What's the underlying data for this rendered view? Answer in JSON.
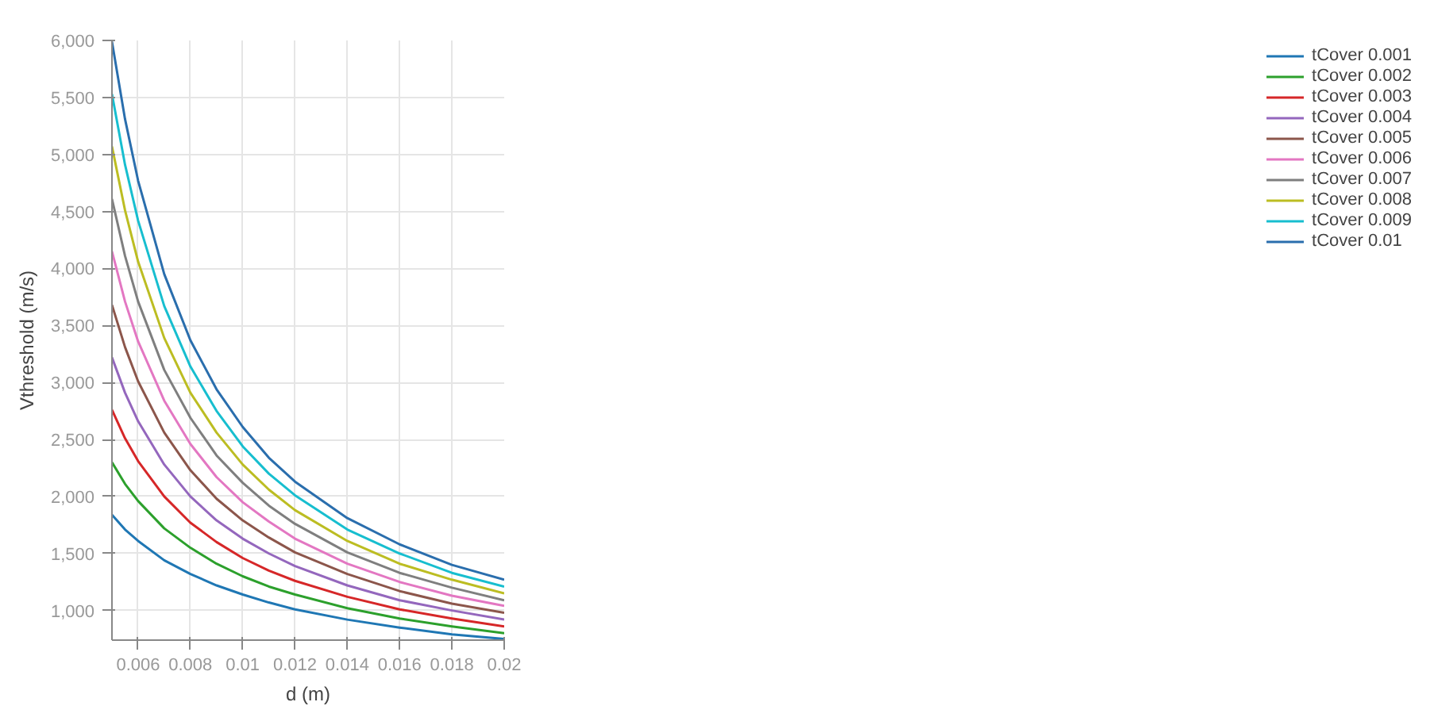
{
  "chart_data": {
    "type": "line",
    "xlabel": "d (m)",
    "ylabel": "Vthreshold (m/s)",
    "x": [
      0.005,
      0.0055,
      0.006,
      0.007,
      0.008,
      0.009,
      0.01,
      0.011,
      0.012,
      0.014,
      0.016,
      0.018,
      0.02
    ],
    "series": [
      {
        "name": "tCover 0.001",
        "color": "#1f77b4",
        "values": [
          1840,
          1710,
          1610,
          1440,
          1320,
          1220,
          1140,
          1070,
          1010,
          920,
          850,
          790,
          750
        ]
      },
      {
        "name": "tCover 0.002",
        "color": "#2ca02c",
        "values": [
          2300,
          2110,
          1960,
          1720,
          1550,
          1410,
          1300,
          1210,
          1140,
          1020,
          930,
          860,
          800
        ]
      },
      {
        "name": "tCover 0.003",
        "color": "#d62728",
        "values": [
          2760,
          2510,
          2310,
          2000,
          1770,
          1600,
          1460,
          1350,
          1260,
          1120,
          1010,
          930,
          860
        ]
      },
      {
        "name": "tCover 0.004",
        "color": "#9467bd",
        "values": [
          3220,
          2910,
          2660,
          2280,
          2000,
          1790,
          1630,
          1500,
          1390,
          1220,
          1090,
          1000,
          920
        ]
      },
      {
        "name": "tCover 0.005",
        "color": "#8c564b",
        "values": [
          3680,
          3310,
          3010,
          2560,
          2230,
          1980,
          1790,
          1640,
          1510,
          1320,
          1170,
          1060,
          980
        ]
      },
      {
        "name": "tCover 0.006",
        "color": "#e377c2",
        "values": [
          4150,
          3710,
          3360,
          2840,
          2460,
          2170,
          1950,
          1780,
          1630,
          1410,
          1250,
          1130,
          1040
        ]
      },
      {
        "name": "tCover 0.007",
        "color": "#7f7f7f",
        "values": [
          4610,
          4110,
          3710,
          3110,
          2690,
          2360,
          2120,
          1920,
          1760,
          1510,
          1330,
          1200,
          1090
        ]
      },
      {
        "name": "tCover 0.008",
        "color": "#bcbd22",
        "values": [
          5070,
          4510,
          4060,
          3390,
          2910,
          2560,
          2280,
          2060,
          1880,
          1610,
          1410,
          1270,
          1150
        ]
      },
      {
        "name": "tCover 0.009",
        "color": "#17becf",
        "values": [
          5530,
          4910,
          4420,
          3670,
          3140,
          2750,
          2440,
          2200,
          2010,
          1710,
          1500,
          1330,
          1210
        ]
      },
      {
        "name": "tCover 0.01",
        "color": "#2a6ead",
        "values": [
          5990,
          5310,
          4770,
          3950,
          3370,
          2940,
          2610,
          2340,
          2130,
          1810,
          1580,
          1400,
          1270
        ]
      }
    ],
    "xlim": [
      0.005,
      0.02
    ],
    "ylim": [
      740,
      6000
    ],
    "xticks": [
      0.006,
      0.008,
      0.01,
      0.012,
      0.014,
      0.016,
      0.018,
      0.02
    ],
    "yticks": [
      {
        "value": 1000,
        "label": "1,000"
      },
      {
        "value": 1500,
        "label": "1,500"
      },
      {
        "value": 2000,
        "label": "2,000"
      },
      {
        "value": 2500,
        "label": "2,500"
      },
      {
        "value": 3000,
        "label": "3,000"
      },
      {
        "value": 3500,
        "label": "3,500"
      },
      {
        "value": 4000,
        "label": "4,000"
      },
      {
        "value": 4500,
        "label": "4,500"
      },
      {
        "value": 5000,
        "label": "5,000"
      },
      {
        "value": 5500,
        "label": "5,500"
      },
      {
        "value": 6000,
        "label": "6,000"
      }
    ],
    "grid": true,
    "legend": "right",
    "marker": "none",
    "line_style": "solid"
  }
}
